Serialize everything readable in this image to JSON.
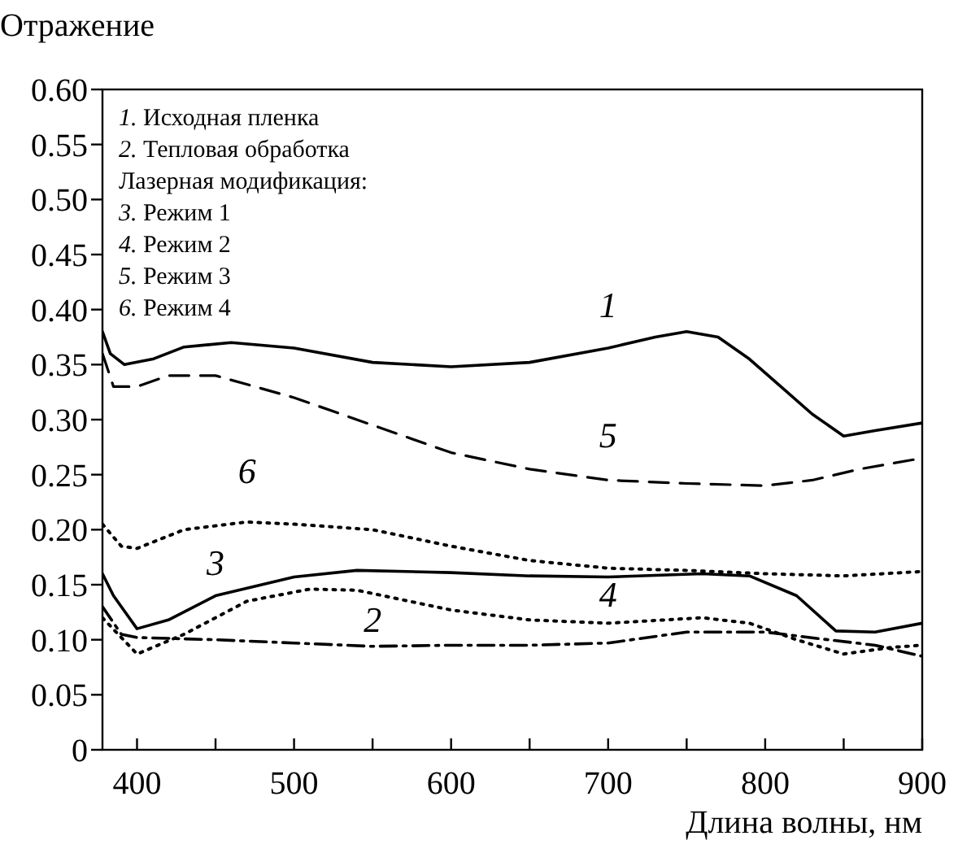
{
  "chart_data": {
    "type": "line",
    "xlabel": "Длина волны, нм",
    "ylabel": "Отражение",
    "xlim": [
      378,
      900
    ],
    "ylim": [
      0,
      0.6
    ],
    "xticks": [
      400,
      {
        "value": 450,
        "label": null
      },
      500,
      {
        "value": 550,
        "label": null
      },
      600,
      {
        "value": 650,
        "label": null
      },
      700,
      {
        "value": 750,
        "label": null
      },
      800,
      {
        "value": 850,
        "label": null
      },
      900
    ],
    "yticks": [
      0,
      {
        "value": 0.05,
        "label": "0.05"
      },
      {
        "value": 0.1,
        "label": "0.10"
      },
      {
        "value": 0.15,
        "label": "0.15"
      },
      {
        "value": 0.2,
        "label": "0.20"
      },
      {
        "value": 0.25,
        "label": "0.25"
      },
      {
        "value": 0.3,
        "label": "0.30"
      },
      {
        "value": 0.35,
        "label": "0.35"
      },
      {
        "value": 0.4,
        "label": "0.40"
      },
      {
        "value": 0.45,
        "label": "0.45"
      },
      {
        "value": 0.5,
        "label": "0.50"
      },
      {
        "value": 0.55,
        "label": "0.55"
      },
      {
        "value": 0.6,
        "label": "0.60"
      }
    ],
    "grid": false,
    "series": [
      {
        "name": "1",
        "color": "#000000",
        "line_style": "solid",
        "x": [
          378,
          383,
          392,
          410,
          430,
          460,
          500,
          550,
          600,
          650,
          700,
          730,
          750,
          770,
          790,
          810,
          830,
          850,
          870,
          900
        ],
        "values": [
          0.38,
          0.36,
          0.35,
          0.355,
          0.366,
          0.37,
          0.365,
          0.352,
          0.348,
          0.352,
          0.365,
          0.375,
          0.38,
          0.375,
          0.355,
          0.33,
          0.305,
          0.285,
          0.29,
          0.297
        ]
      },
      {
        "name": "2",
        "color": "#000000",
        "line_style": "dashdot",
        "x": [
          378,
          390,
          400,
          450,
          500,
          550,
          600,
          650,
          700,
          750,
          800,
          840,
          870,
          900
        ],
        "values": [
          0.13,
          0.105,
          0.102,
          0.1,
          0.097,
          0.094,
          0.095,
          0.095,
          0.097,
          0.107,
          0.107,
          0.1,
          0.095,
          0.085
        ]
      },
      {
        "name": "3",
        "color": "#000000",
        "line_style": "solid",
        "x": [
          378,
          385,
          400,
          420,
          450,
          500,
          540,
          600,
          650,
          700,
          760,
          790,
          820,
          845,
          870,
          900
        ],
        "values": [
          0.16,
          0.14,
          0.11,
          0.118,
          0.14,
          0.157,
          0.163,
          0.161,
          0.158,
          0.157,
          0.16,
          0.158,
          0.14,
          0.108,
          0.107,
          0.115
        ]
      },
      {
        "name": "4",
        "color": "#000000",
        "line_style": "dotted",
        "x": [
          378,
          400,
          430,
          470,
          510,
          540,
          600,
          650,
          700,
          760,
          790,
          820,
          850,
          880,
          900
        ],
        "values": [
          0.12,
          0.087,
          0.105,
          0.135,
          0.146,
          0.145,
          0.127,
          0.118,
          0.115,
          0.12,
          0.115,
          0.1,
          0.087,
          0.093,
          0.095
        ]
      },
      {
        "name": "5",
        "color": "#000000",
        "line_style": "dashed",
        "x": [
          378,
          385,
          400,
          420,
          450,
          500,
          550,
          600,
          650,
          700,
          750,
          800,
          830,
          860,
          900
        ],
        "values": [
          0.36,
          0.33,
          0.33,
          0.34,
          0.34,
          0.32,
          0.295,
          0.27,
          0.255,
          0.245,
          0.242,
          0.24,
          0.245,
          0.255,
          0.265
        ]
      },
      {
        "name": "6",
        "color": "#000000",
        "line_style": "dotted",
        "x": [
          378,
          390,
          400,
          430,
          470,
          500,
          550,
          600,
          650,
          700,
          750,
          800,
          850,
          900
        ],
        "values": [
          0.205,
          0.185,
          0.183,
          0.2,
          0.207,
          0.205,
          0.2,
          0.185,
          0.172,
          0.165,
          0.163,
          0.16,
          0.158,
          0.162
        ]
      }
    ],
    "annotations": [
      "1. Исходная пленка",
      "2. Тепловая обработка",
      "Лазерная модификация:",
      "3. Режим 1",
      "4. Режим 2",
      "5. Режим 3",
      "6. Режим 4"
    ]
  }
}
